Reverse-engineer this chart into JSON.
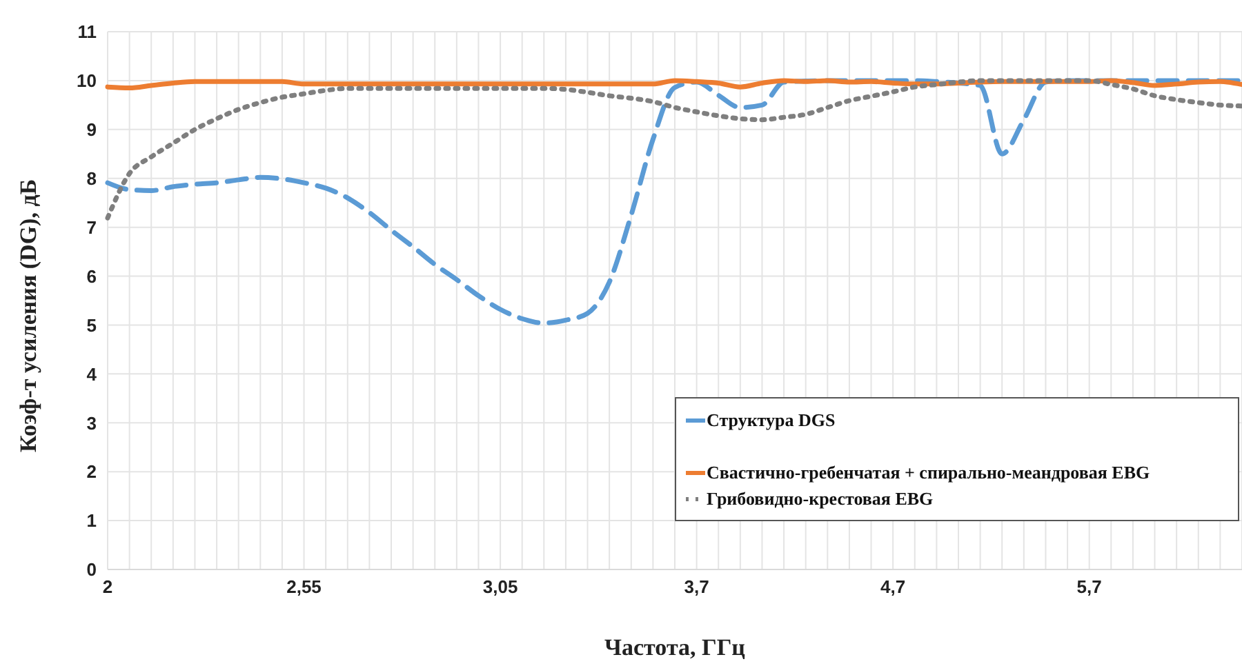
{
  "chart_data": {
    "type": "line",
    "xlabel": "Частота, ГГц",
    "ylabel": "Коэф-т усиления (DG), дБ",
    "categories": [
      "2",
      null,
      null,
      null,
      null,
      null,
      null,
      null,
      null,
      "2,55",
      null,
      null,
      null,
      null,
      null,
      null,
      null,
      null,
      "3,05",
      null,
      null,
      null,
      null,
      null,
      null,
      null,
      null,
      "3,7",
      null,
      null,
      null,
      null,
      null,
      null,
      null,
      null,
      "4,7",
      null,
      null,
      null,
      null,
      null,
      null,
      null,
      null,
      "5,7",
      null,
      null,
      null,
      null,
      null,
      null,
      null
    ],
    "series": [
      {
        "name": "Структура DGS",
        "color": "#5b9bd5",
        "line_style": "dashed",
        "values": [
          7.91,
          7.77,
          7.75,
          7.83,
          7.88,
          7.91,
          7.97,
          8.02,
          7.99,
          7.91,
          7.8,
          7.6,
          7.3,
          6.94,
          6.6,
          6.24,
          5.93,
          5.6,
          5.32,
          5.13,
          5.04,
          5.1,
          5.24,
          5.88,
          7.25,
          8.8,
          9.86,
          9.97,
          9.7,
          9.45,
          9.5,
          9.97,
          9.99,
          10,
          10,
          10,
          10,
          10,
          9.98,
          9.95,
          9.9,
          8.5,
          9.2,
          9.97,
          10,
          10,
          10,
          10,
          10,
          10,
          10,
          10,
          10
        ]
      },
      {
        "name": "Свастично-гребенчатая + спирально-меандровая EBG",
        "color": "#ed7d31",
        "line_style": "solid",
        "values": [
          9.87,
          9.85,
          9.9,
          9.95,
          9.98,
          9.98,
          9.98,
          9.98,
          9.98,
          9.93,
          9.93,
          9.93,
          9.93,
          9.93,
          9.93,
          9.93,
          9.93,
          9.93,
          9.93,
          9.93,
          9.93,
          9.93,
          9.93,
          9.93,
          9.93,
          9.93,
          10,
          9.98,
          9.95,
          9.87,
          9.95,
          10,
          9.98,
          10,
          9.97,
          9.98,
          9.95,
          9.93,
          9.93,
          9.95,
          9.97,
          9.98,
          9.98,
          9.98,
          9.98,
          9.98,
          10,
          9.96,
          9.9,
          9.93,
          9.97,
          9.98,
          9.92
        ]
      },
      {
        "name": "Грибовидно-крестовая EBG",
        "color": "#7f7f7f",
        "line_style": "dotted",
        "values": [
          7.19,
          8.1,
          8.44,
          8.72,
          9.0,
          9.22,
          9.41,
          9.55,
          9.66,
          9.73,
          9.8,
          9.84,
          9.84,
          9.84,
          9.84,
          9.84,
          9.84,
          9.84,
          9.84,
          9.84,
          9.84,
          9.82,
          9.76,
          9.69,
          9.64,
          9.57,
          9.45,
          9.36,
          9.28,
          9.22,
          9.2,
          9.25,
          9.31,
          9.45,
          9.59,
          9.68,
          9.77,
          9.87,
          9.92,
          9.97,
          10,
          10,
          10,
          10,
          10,
          10,
          9.92,
          9.83,
          9.69,
          9.61,
          9.55,
          9.5,
          9.48
        ]
      }
    ],
    "ylim": [
      0,
      11
    ],
    "yticks": [
      0,
      1,
      2,
      3,
      4,
      5,
      6,
      7,
      8,
      9,
      10,
      11
    ],
    "grid": true,
    "legend": "bottom right"
  }
}
